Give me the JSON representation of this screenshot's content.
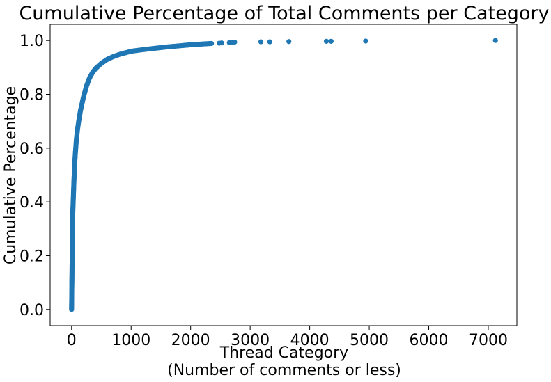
{
  "chart_data": {
    "type": "scatter",
    "title": "Cumulative Percentage of Total Comments per Category",
    "xlabel_line1": "Thread Category",
    "xlabel_line2": "(Number of comments or less)",
    "ylabel": "Cumulative Percentage",
    "xlim": [
      -360,
      7480
    ],
    "ylim": [
      -0.06,
      1.06
    ],
    "xticks": [
      0,
      1000,
      2000,
      3000,
      4000,
      5000,
      6000,
      7000
    ],
    "xtick_labels": [
      "0",
      "1000",
      "2000",
      "3000",
      "4000",
      "5000",
      "6000",
      "7000"
    ],
    "yticks": [
      0.0,
      0.2,
      0.4,
      0.6,
      0.8,
      1.0
    ],
    "ytick_labels": [
      "0.0",
      "0.2",
      "0.4",
      "0.6",
      "0.8",
      "1.0"
    ],
    "grid": false,
    "legend": "none",
    "marker_color": "#1f77b4",
    "series": [
      {
        "curve_points": [
          [
            0,
            0.0
          ],
          [
            5,
            0.1
          ],
          [
            10,
            0.2
          ],
          [
            15,
            0.3
          ],
          [
            20,
            0.36
          ],
          [
            30,
            0.42
          ],
          [
            40,
            0.48
          ],
          [
            50,
            0.53
          ],
          [
            60,
            0.57
          ],
          [
            70,
            0.6
          ],
          [
            80,
            0.63
          ],
          [
            100,
            0.67
          ],
          [
            120,
            0.7
          ],
          [
            150,
            0.74
          ],
          [
            180,
            0.77
          ],
          [
            200,
            0.79
          ],
          [
            250,
            0.83
          ],
          [
            300,
            0.86
          ],
          [
            350,
            0.88
          ],
          [
            400,
            0.895
          ],
          [
            450,
            0.905
          ],
          [
            500,
            0.915
          ],
          [
            600,
            0.93
          ],
          [
            700,
            0.94
          ],
          [
            800,
            0.948
          ],
          [
            900,
            0.954
          ],
          [
            1000,
            0.96
          ],
          [
            1200,
            0.966
          ],
          [
            1400,
            0.971
          ],
          [
            1600,
            0.976
          ],
          [
            1800,
            0.98
          ],
          [
            2000,
            0.984
          ],
          [
            2200,
            0.987
          ],
          [
            2350,
            0.989
          ]
        ],
        "outliers": [
          [
            2480,
            0.99
          ],
          [
            2520,
            0.991
          ],
          [
            2650,
            0.992
          ],
          [
            2700,
            0.993
          ],
          [
            2740,
            0.994
          ],
          [
            3180,
            0.995
          ],
          [
            3330,
            0.995
          ],
          [
            3650,
            0.996
          ],
          [
            4280,
            0.997
          ],
          [
            4360,
            0.997
          ],
          [
            4940,
            0.998
          ],
          [
            7120,
            1.0
          ]
        ]
      }
    ]
  }
}
